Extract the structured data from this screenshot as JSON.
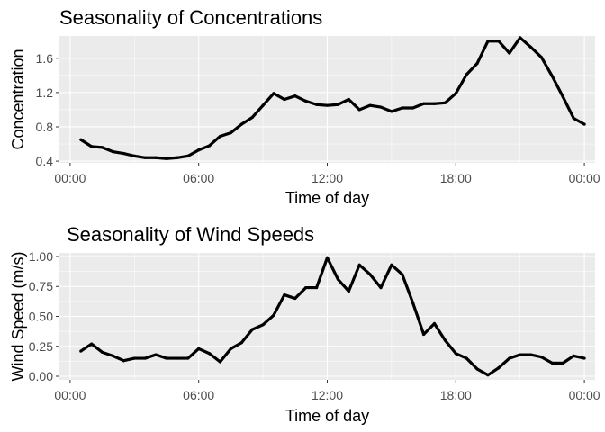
{
  "chart_data": [
    {
      "type": "line",
      "title": "Seasonality of Concentrations",
      "xlabel": "Time of day",
      "ylabel": "Concentration",
      "x_unit": "hours",
      "xlim": [
        -0.5,
        24.5
      ],
      "ylim": [
        0.38,
        1.86
      ],
      "x_ticks": [
        {
          "value": 0,
          "label": "00:00"
        },
        {
          "value": 6,
          "label": "06:00"
        },
        {
          "value": 12,
          "label": "12:00"
        },
        {
          "value": 18,
          "label": "18:00"
        },
        {
          "value": 24,
          "label": "00:00"
        }
      ],
      "y_ticks": [
        {
          "value": 0.4,
          "label": "0.4"
        },
        {
          "value": 0.8,
          "label": "0.8"
        },
        {
          "value": 1.2,
          "label": "1.2"
        },
        {
          "value": 1.6,
          "label": "1.6"
        }
      ],
      "grid": true,
      "x": [
        0.5,
        1,
        1.5,
        2,
        2.5,
        3,
        3.5,
        4,
        4.5,
        5,
        5.5,
        6,
        6.5,
        7,
        7.5,
        8,
        8.5,
        9,
        9.5,
        10,
        10.5,
        11,
        11.5,
        12,
        12.5,
        13,
        13.5,
        14,
        14.5,
        15,
        15.5,
        16,
        16.5,
        17,
        17.5,
        18,
        18.5,
        19,
        19.5,
        20,
        20.5,
        21,
        21.5,
        22,
        22.5,
        23,
        23.5,
        24
      ],
      "values": [
        0.65,
        0.57,
        0.56,
        0.51,
        0.49,
        0.46,
        0.44,
        0.44,
        0.43,
        0.44,
        0.46,
        0.53,
        0.58,
        0.69,
        0.73,
        0.83,
        0.91,
        1.05,
        1.19,
        1.12,
        1.16,
        1.1,
        1.06,
        1.05,
        1.06,
        1.12,
        1.0,
        1.05,
        1.03,
        0.98,
        1.02,
        1.02,
        1.07,
        1.07,
        1.08,
        1.19,
        1.41,
        1.54,
        1.8,
        1.8,
        1.66,
        1.84,
        1.73,
        1.61,
        1.39,
        1.15,
        0.9,
        0.83
      ]
    },
    {
      "type": "line",
      "title": "Seasonality of Wind Speeds",
      "xlabel": "Time of day",
      "ylabel": "Wind Speed (m/s)",
      "x_unit": "hours",
      "xlim": [
        -0.5,
        24.5
      ],
      "ylim": [
        -0.03,
        1.03
      ],
      "x_ticks": [
        {
          "value": 0,
          "label": "00:00"
        },
        {
          "value": 6,
          "label": "06:00"
        },
        {
          "value": 12,
          "label": "12:00"
        },
        {
          "value": 18,
          "label": "18:00"
        },
        {
          "value": 24,
          "label": "00:00"
        }
      ],
      "y_ticks": [
        {
          "value": 0.0,
          "label": "0.00"
        },
        {
          "value": 0.25,
          "label": "0.25"
        },
        {
          "value": 0.5,
          "label": "0.50"
        },
        {
          "value": 0.75,
          "label": "0.75"
        },
        {
          "value": 1.0,
          "label": "1.00"
        }
      ],
      "grid": true,
      "x": [
        0.5,
        1,
        1.5,
        2,
        2.5,
        3,
        3.5,
        4,
        4.5,
        5,
        5.5,
        6,
        6.5,
        7,
        7.5,
        8,
        8.5,
        9,
        9.5,
        10,
        10.5,
        11,
        11.5,
        12,
        12.5,
        13,
        13.5,
        14,
        14.5,
        15,
        15.5,
        16,
        16.5,
        17,
        17.5,
        18,
        18.5,
        19,
        19.5,
        20,
        20.5,
        21,
        21.5,
        22,
        22.5,
        23,
        23.5,
        24
      ],
      "values": [
        0.21,
        0.27,
        0.2,
        0.17,
        0.13,
        0.15,
        0.15,
        0.18,
        0.15,
        0.15,
        0.15,
        0.23,
        0.19,
        0.12,
        0.23,
        0.28,
        0.39,
        0.43,
        0.51,
        0.68,
        0.65,
        0.74,
        0.74,
        0.99,
        0.81,
        0.71,
        0.93,
        0.85,
        0.74,
        0.93,
        0.85,
        0.61,
        0.35,
        0.44,
        0.3,
        0.19,
        0.15,
        0.06,
        0.01,
        0.07,
        0.15,
        0.18,
        0.18,
        0.16,
        0.11,
        0.11,
        0.17,
        0.15
      ]
    }
  ]
}
